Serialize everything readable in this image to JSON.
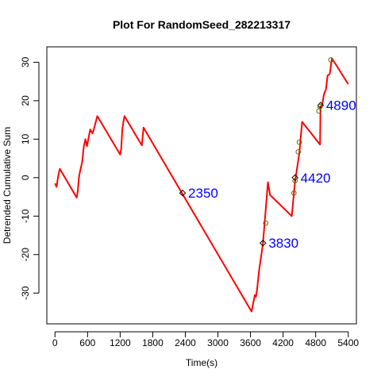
{
  "chart_data": {
    "type": "line",
    "title": "Plot For RandomSeed_282213317",
    "xlabel": "Time(s)",
    "ylabel": "Detrended Cumulative Sum",
    "xlim": [
      -150,
      5550
    ],
    "ylim": [
      -38,
      34
    ],
    "x_ticks": [
      0,
      600,
      1200,
      1800,
      2400,
      3000,
      3600,
      4200,
      4800,
      5400
    ],
    "x_tick_labels": [
      "0",
      "600",
      "1200",
      "1800",
      "2400",
      "3000",
      "3600",
      "4200",
      "4800",
      "5400"
    ],
    "y_ticks": [
      -30,
      -20,
      -10,
      0,
      10,
      20,
      30
    ],
    "y_tick_labels": [
      "-30",
      "-20",
      "-10",
      "0",
      "10",
      "20",
      "30"
    ],
    "grid": false,
    "line_color": "#ff0000",
    "annotation_color": "#0000ff",
    "series": [
      {
        "x": [
          0,
          30,
          60,
          90,
          400,
          420,
          440,
          460,
          500,
          530,
          560,
          590,
          620,
          650,
          690,
          720,
          780,
          1200,
          1220,
          1240,
          1260,
          1280,
          1600,
          1630,
          3620,
          3680,
          3700,
          3720,
          3760,
          3800,
          3830,
          3880,
          3920,
          3960,
          4360,
          4400,
          4420,
          4500,
          4550,
          4880,
          4890,
          4920,
          4950,
          4990,
          5020,
          5060,
          5100,
          5400
        ],
        "y": [
          -1.5,
          -2.4,
          0.5,
          2.3,
          -5.2,
          -3.5,
          0,
          1.5,
          4,
          8,
          10,
          8.2,
          10.5,
          12.5,
          11.5,
          12.8,
          16,
          6,
          7.5,
          12.5,
          14.5,
          16,
          8.4,
          13,
          -34.8,
          -30.5,
          -31,
          -29.2,
          -24,
          -20,
          -17,
          -8.5,
          -1.2,
          -4.5,
          -10,
          -4,
          -1,
          6.5,
          14.5,
          8.6,
          18.5,
          18.8,
          21.5,
          23,
          26.5,
          27,
          31,
          24.3
        ]
      }
    ],
    "markers": [
      {
        "x": 2350,
        "y": -4,
        "shape": "diamond"
      },
      {
        "x": 3830,
        "y": -17,
        "shape": "diamond"
      },
      {
        "x": 4420,
        "y": 0,
        "shape": "diamond"
      },
      {
        "x": 4890,
        "y": 18.8,
        "shape": "diamond"
      },
      {
        "x": 3880,
        "y": -11.8,
        "shape": "circle"
      },
      {
        "x": 4400,
        "y": -4,
        "shape": "circle"
      },
      {
        "x": 4420,
        "y": -0.8,
        "shape": "circle"
      },
      {
        "x": 4480,
        "y": 6.7,
        "shape": "circle"
      },
      {
        "x": 4500,
        "y": 9.2,
        "shape": "circle"
      },
      {
        "x": 4860,
        "y": 17.3,
        "shape": "circle"
      },
      {
        "x": 4880,
        "y": 18.5,
        "shape": "circle"
      },
      {
        "x": 5080,
        "y": 30.6,
        "shape": "circle"
      }
    ],
    "annotations": [
      {
        "x": 2350,
        "y": -4,
        "label": "2350"
      },
      {
        "x": 3830,
        "y": -17,
        "label": "3830"
      },
      {
        "x": 4420,
        "y": 0,
        "label": "4420"
      },
      {
        "x": 4890,
        "y": 18.8,
        "label": "4890"
      }
    ]
  }
}
